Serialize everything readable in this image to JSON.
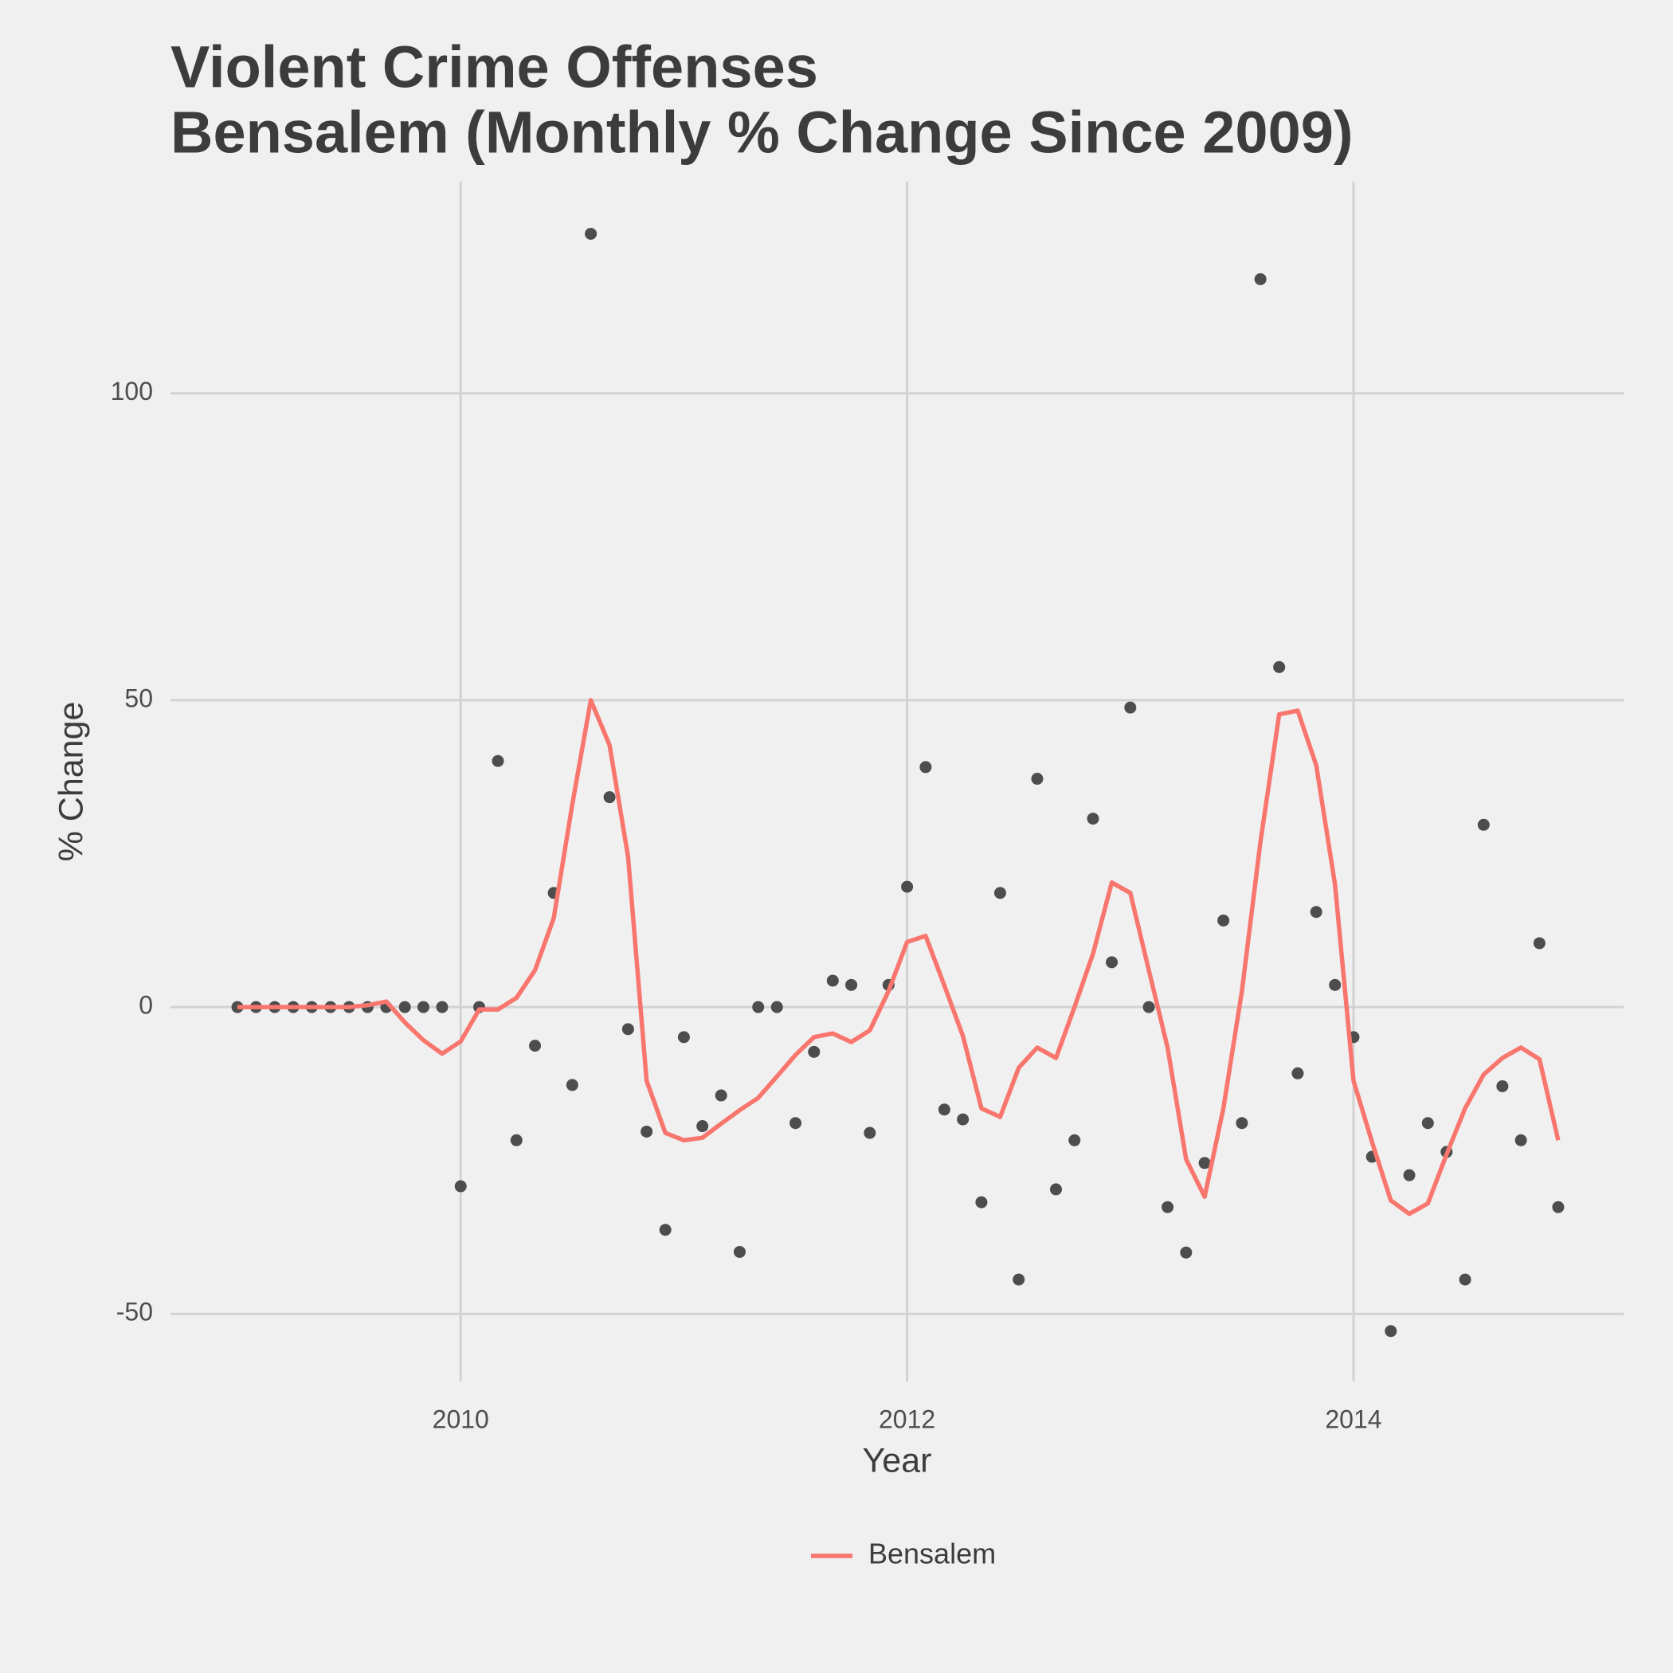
{
  "chart_data": {
    "type": "line",
    "title": "Violent Crime Offenses",
    "subtitle": "Bensalem (Monthly % Change Since 2009)",
    "x_label": "Year",
    "y_label": "% Change",
    "x": [
      2009,
      2009.083,
      2009.167,
      2009.25,
      2009.333,
      2009.417,
      2009.5,
      2009.583,
      2009.667,
      2009.75,
      2009.833,
      2009.917,
      2010,
      2010.083,
      2010.167,
      2010.25,
      2010.333,
      2010.417,
      2010.5,
      2010.583,
      2010.667,
      2010.75,
      2010.833,
      2010.917,
      2011,
      2011.083,
      2011.167,
      2011.25,
      2011.333,
      2011.417,
      2011.5,
      2011.583,
      2011.667,
      2011.75,
      2011.833,
      2011.917,
      2012,
      2012.083,
      2012.167,
      2012.25,
      2012.333,
      2012.417,
      2012.5,
      2012.583,
      2012.667,
      2012.75,
      2012.833,
      2012.917,
      2013,
      2013.083,
      2013.167,
      2013.25,
      2013.333,
      2013.417,
      2013.5,
      2013.583,
      2013.667,
      2013.75,
      2013.833,
      2013.917,
      2014,
      2014.083,
      2014.167,
      2014.25,
      2014.333,
      2014.417,
      2014.5,
      2014.583,
      2014.667,
      2014.75,
      2014.833,
      2014.917
    ],
    "series": [
      {
        "mode": "markers",
        "color": "#4d4d4d",
        "values": [
          0,
          0,
          0,
          0,
          0,
          0,
          0,
          0,
          0,
          0,
          0,
          0,
          -29.2,
          0,
          40.1,
          -21.7,
          -6.3,
          18.6,
          -12.7,
          126,
          34.2,
          -3.6,
          -20.3,
          -36.3,
          -4.9,
          -19.4,
          -14.4,
          -39.9,
          0,
          0,
          -18.9,
          -7.3,
          4.3,
          3.6,
          -20.5,
          3.6,
          19.6,
          39.1,
          -16.7,
          -18.3,
          -31.8,
          18.6,
          -44.4,
          37.2,
          -29.7,
          -21.7,
          30.7,
          7.3,
          48.8,
          0,
          -32.6,
          -40,
          -25.4,
          14.1,
          -18.9,
          118.6,
          55.4,
          -10.8,
          15.5,
          3.6,
          -4.9,
          -24.4,
          -52.8,
          -27.4,
          -18.9,
          -23.6,
          -44.4,
          29.7,
          -12.9,
          -21.7,
          10.4,
          -32.6
        ]
      },
      {
        "name": "Bensalem",
        "mode": "lines",
        "color": "#f8766d",
        "values": [
          0,
          0,
          0,
          0,
          0,
          0,
          0,
          0.3,
          0.9,
          -2.5,
          -5.4,
          -7.6,
          -5.6,
          -0.4,
          -0.4,
          1.5,
          6,
          14.5,
          33,
          50,
          42.7,
          24.5,
          -12,
          -20.5,
          -21.7,
          -21.3,
          -19,
          -16.8,
          -14.8,
          -11.3,
          -7.8,
          -4.9,
          -4.3,
          -5.7,
          -3.8,
          2.6,
          10.6,
          11.6,
          3.5,
          -4.7,
          -16.5,
          -17.9,
          -9.9,
          -6.6,
          -8.3,
          0,
          8.7,
          20.3,
          18.6,
          6,
          -6.6,
          -24.8,
          -30.9,
          -16.5,
          2.6,
          26.9,
          47.7,
          48.3,
          39.4,
          20,
          -12,
          -22,
          -31.5,
          -33.7,
          -32,
          -24,
          -16.5,
          -11,
          -8.3,
          -6.6,
          -8.5,
          -21.7
        ]
      }
    ],
    "xlim": [
      2008.7,
      2015.21
    ],
    "ylim": [
      -61,
      134.5
    ],
    "xticks": [
      2010,
      2012,
      2014
    ],
    "yticks": [
      -50,
      0,
      50,
      100
    ],
    "grid": true,
    "legend": "bottom"
  }
}
